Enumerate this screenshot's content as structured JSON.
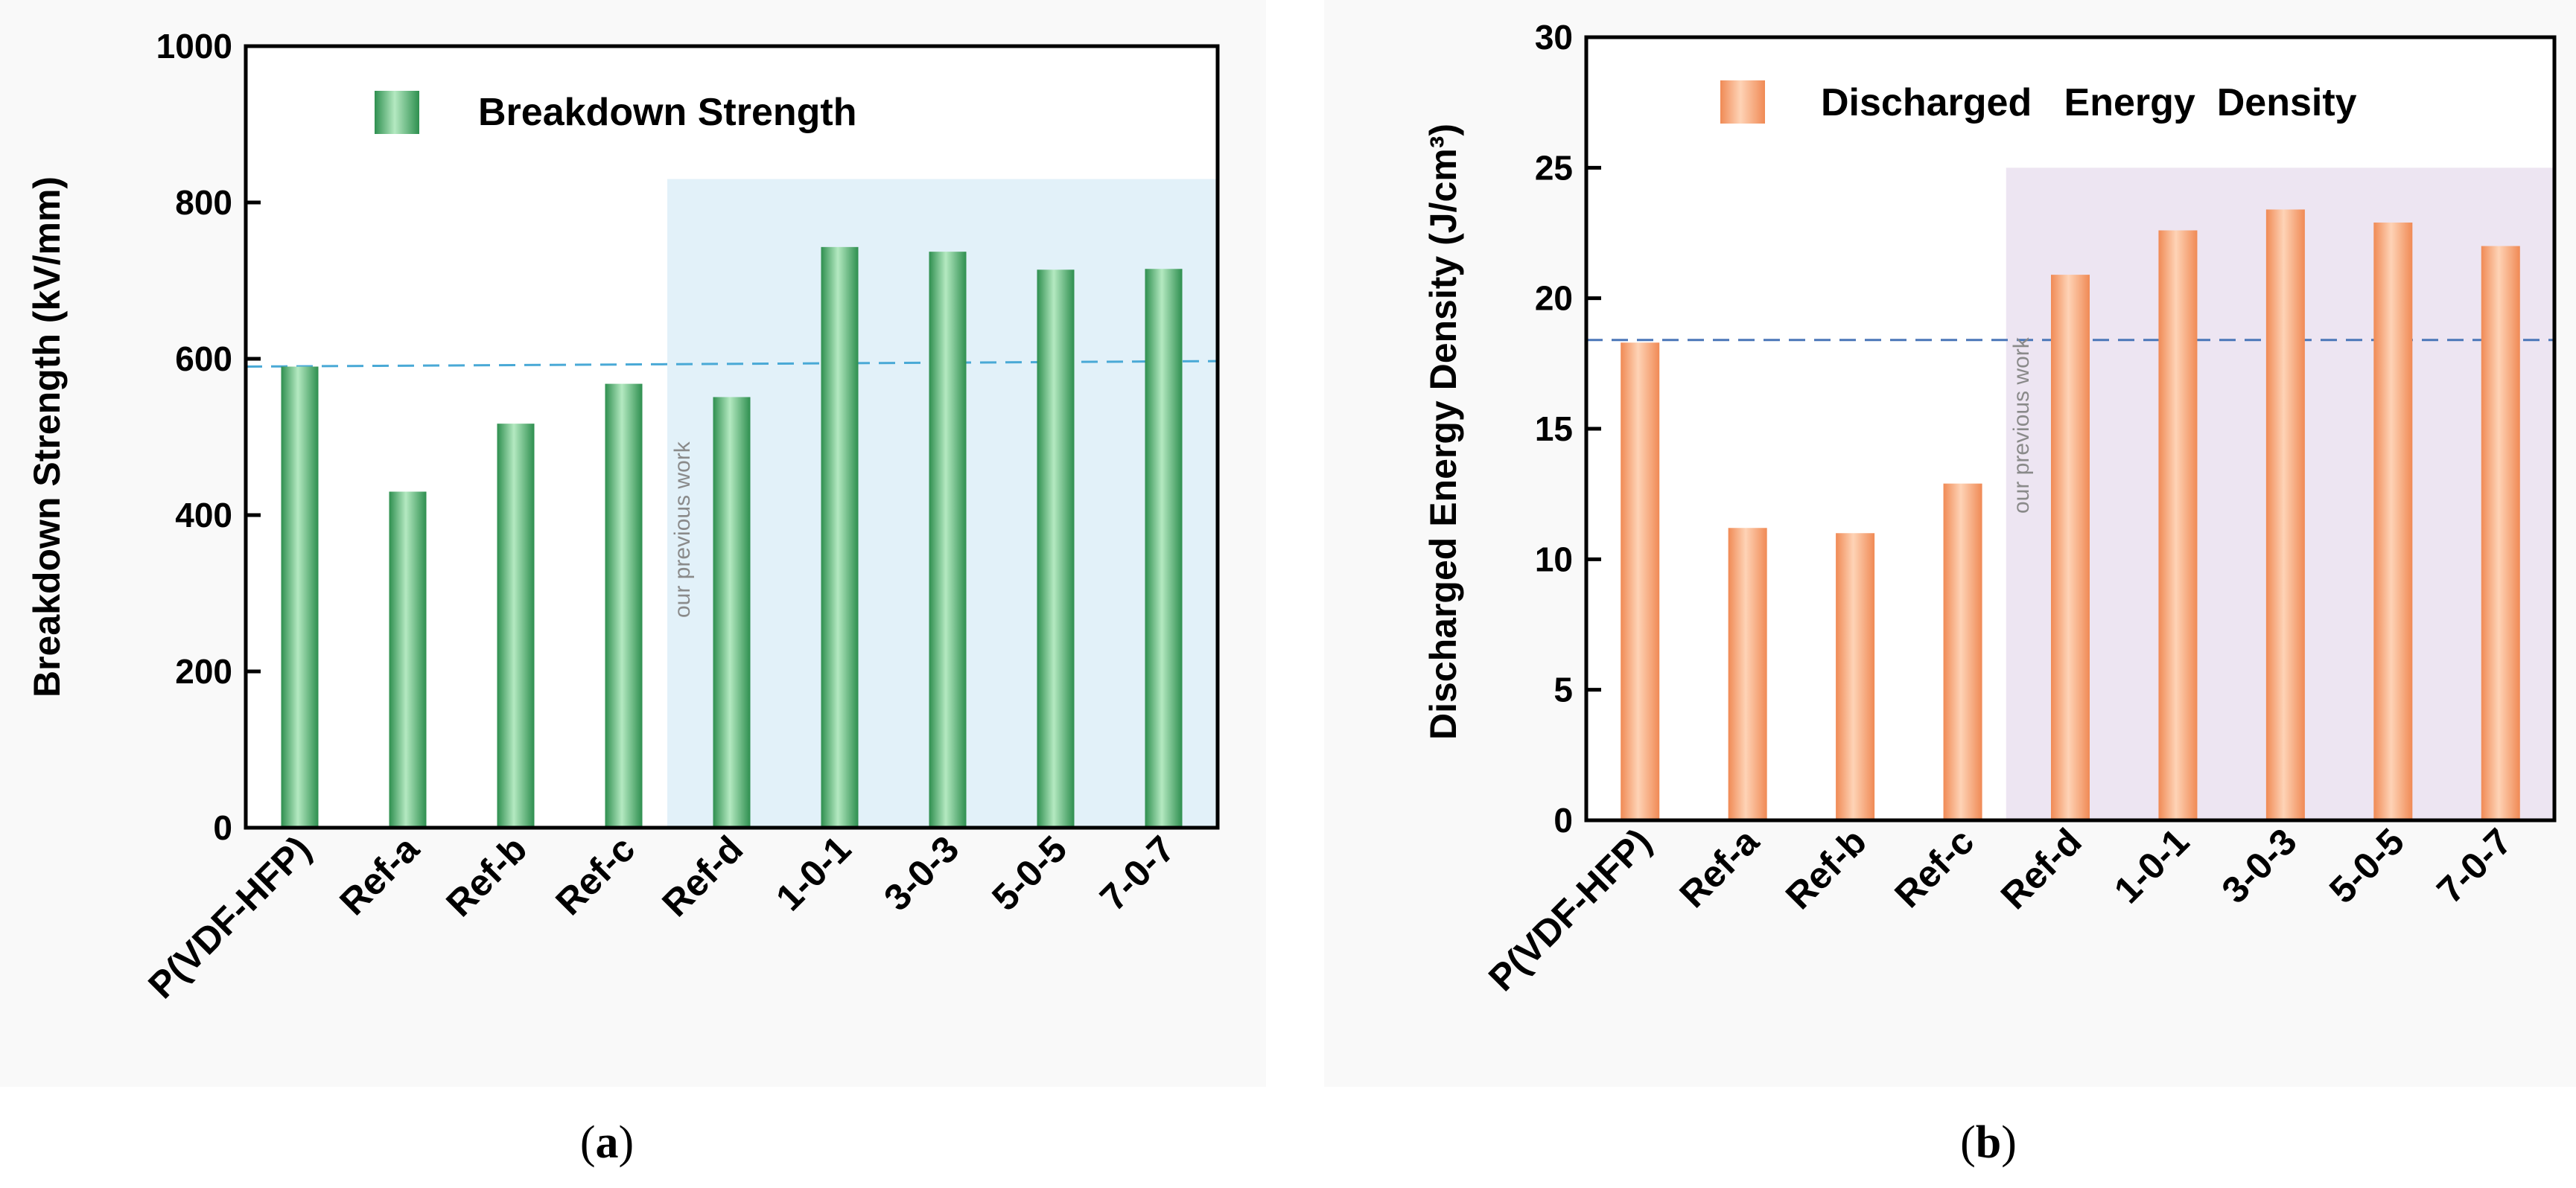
{
  "chart_data": [
    {
      "type": "bar",
      "panel_label": "a",
      "categories": [
        "P(VDF-HFP)",
        "Ref-a",
        "Ref-b",
        "Ref-c",
        "Ref-d",
        "1-0-1",
        "3-0-3",
        "5-0-5",
        "7-0-7"
      ],
      "values": [
        590,
        430,
        517,
        568,
        551,
        743,
        737,
        714,
        715
      ],
      "yticks": [
        0,
        200,
        400,
        600,
        800,
        1000
      ],
      "ylabel": "Breakdown Strength (kV/mm)",
      "legend": "Breakdown Strength",
      "legend_position": "top-left",
      "ylim": [
        0,
        1000
      ],
      "reference_line": [
        590,
        597
      ],
      "highlight_region": {
        "from_category": "Ref-d",
        "to_category": "7-0-7",
        "ymax": 830,
        "label": "our previous work"
      },
      "bar_color": "#5fc07e",
      "region_color": "#e2f1f9",
      "line_color": "#49a9d6"
    },
    {
      "type": "bar",
      "panel_label": "b",
      "categories": [
        "P(VDF-HFP)",
        "Ref-a",
        "Ref-b",
        "Ref-c",
        "Ref-d",
        "1-0-1",
        "3-0-3",
        "5-0-5",
        "7-0-7"
      ],
      "values": [
        18.3,
        11.2,
        11.0,
        12.9,
        20.9,
        22.6,
        23.4,
        22.9,
        22.0
      ],
      "yticks": [
        0,
        5,
        10,
        15,
        20,
        25,
        30
      ],
      "ylabel": "Discharged   Energy  Density (J/cm³)",
      "legend": "Discharged   Energy  Density",
      "legend_position": "top",
      "ylim": [
        0,
        30
      ],
      "reference_line": [
        18.4,
        18.4
      ],
      "highlight_region": {
        "from_category": "Ref-d",
        "to_category": "7-0-7",
        "ymax": 25,
        "label": "our previous work"
      },
      "bar_color": "#f9a87b",
      "region_color": "#ede5f2",
      "line_color": "#4a76b8"
    }
  ]
}
